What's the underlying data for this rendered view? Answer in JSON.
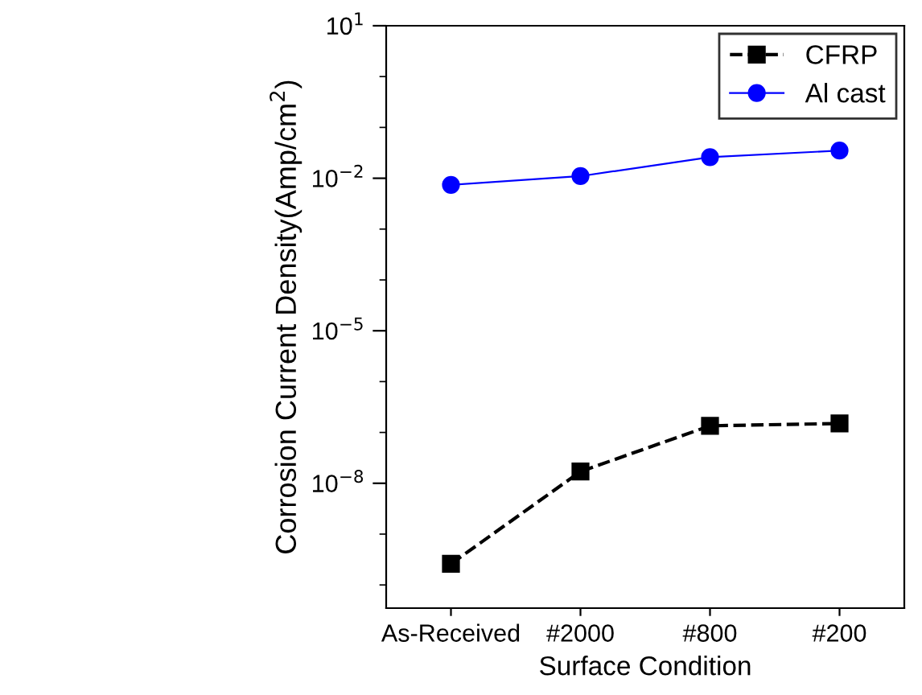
{
  "chart_data": {
    "type": "line",
    "xlabel": "Surface Condition",
    "ylabel": "Corrosion Current Density(Amp/cm$^{2}$)",
    "categories": [
      "As-Received",
      "#2000",
      "#800",
      "#200"
    ],
    "log": "y",
    "ylim": [
      3.5e-11,
      10
    ],
    "yticks": [
      {
        "value": 10,
        "label": "10$^{1}$"
      },
      {
        "value": 0.01,
        "label": "10$^{−2}$"
      },
      {
        "value": 1e-05,
        "label": "10$^{−5}$"
      },
      {
        "value": 1e-08,
        "label": "10$^{−8}$"
      }
    ],
    "grid": false,
    "legend": "top right",
    "series": [
      {
        "name": "CFRP",
        "color": "#000000",
        "marker": "square",
        "line_style": "dashed",
        "values": [
          2.6e-10,
          1.7e-08,
          1.35e-07,
          1.5e-07
        ]
      },
      {
        "name": "Al cast",
        "color": "#0000ff",
        "marker": "circle",
        "line_style": "solid",
        "values": [
          0.0074,
          0.011,
          0.026,
          0.035
        ]
      }
    ]
  }
}
